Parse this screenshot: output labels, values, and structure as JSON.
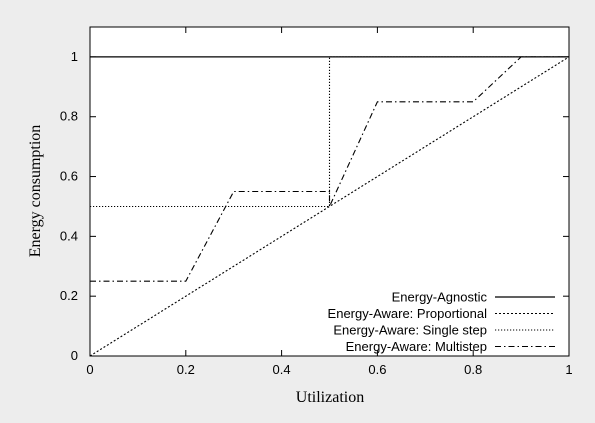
{
  "chart_data": {
    "type": "line",
    "xlabel": "Utilization",
    "ylabel": "Energy consumption",
    "xlim": [
      0,
      1
    ],
    "ylim": [
      0,
      1.1
    ],
    "x_ticks": [
      "0",
      "0.2",
      "0.4",
      "0.6",
      "0.8",
      "1"
    ],
    "y_ticks": [
      "0",
      "0.2",
      "0.4",
      "0.6",
      "0.8",
      "1"
    ],
    "grid": false,
    "legend_position": "bottom-right",
    "series": [
      {
        "name": "Energy-Agnostic",
        "style": "solid",
        "color": "#000000",
        "points": [
          [
            0,
            1
          ],
          [
            1,
            1
          ]
        ]
      },
      {
        "name": "Energy-Aware: Proportional",
        "style": "dotted",
        "color": "#000000",
        "points": [
          [
            0,
            0
          ],
          [
            1,
            1
          ]
        ]
      },
      {
        "name": "Energy-Aware: Single step",
        "style": "fine-dotted",
        "color": "#000000",
        "points": [
          [
            0,
            0.5
          ],
          [
            0.5,
            0.5
          ],
          [
            0.5,
            1
          ],
          [
            1,
            1
          ]
        ]
      },
      {
        "name": "Energy-Aware: Multistep",
        "style": "dash-dot",
        "color": "#000000",
        "points": [
          [
            0,
            0.25
          ],
          [
            0.2,
            0.25
          ],
          [
            0.3,
            0.55
          ],
          [
            0.5,
            0.55
          ],
          [
            0.5,
            0.5
          ],
          [
            0.6,
            0.85
          ],
          [
            0.8,
            0.85
          ],
          [
            0.9,
            1
          ],
          [
            1,
            1
          ]
        ]
      }
    ]
  }
}
